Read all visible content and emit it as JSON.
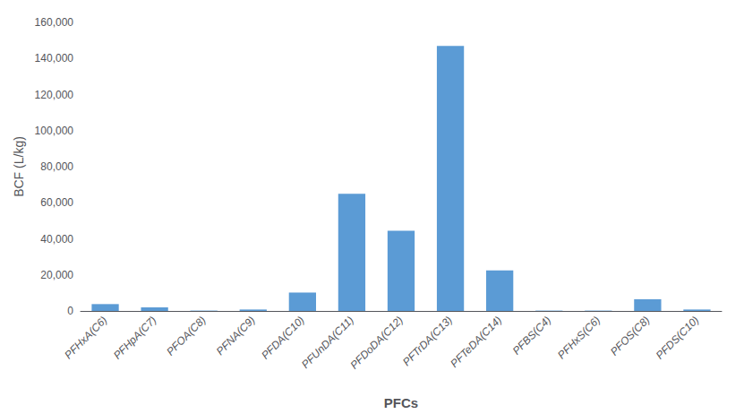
{
  "chart_data": {
    "type": "bar",
    "categories": [
      "PFHxA(C6)",
      "PFHpA(C7)",
      "PFOA(C8)",
      "PFNA(C9)",
      "PFDA(C10)",
      "PFUnDA(C11)",
      "PFDoDA(C12)",
      "PFTrDA(C13)",
      "PFTeDA(C14)",
      "PFBS(C4)",
      "PFHxS(C6)",
      "PFOS(C8)",
      "PFDS(C10)"
    ],
    "values": [
      3800,
      2000,
      200,
      800,
      10200,
      65000,
      44500,
      147000,
      22500,
      200,
      200,
      6500,
      800
    ],
    "color": "#5B9BD5",
    "xlabel": "PFCs",
    "ylabel": "BCF (L/kg)",
    "ylim": [
      0,
      160000
    ],
    "yticks": [
      0,
      {
        "value": 20000,
        "label": "20,000"
      },
      {
        "value": 40000,
        "label": "40,000"
      },
      {
        "value": 60000,
        "label": "60,000"
      },
      {
        "value": 80000,
        "label": "80,000"
      },
      {
        "value": 100000,
        "label": "100,000"
      },
      {
        "value": 120000,
        "label": "120,000"
      },
      {
        "value": 140000,
        "label": "140,000"
      },
      {
        "value": 160000,
        "label": "160,000"
      }
    ],
    "grid": false
  }
}
